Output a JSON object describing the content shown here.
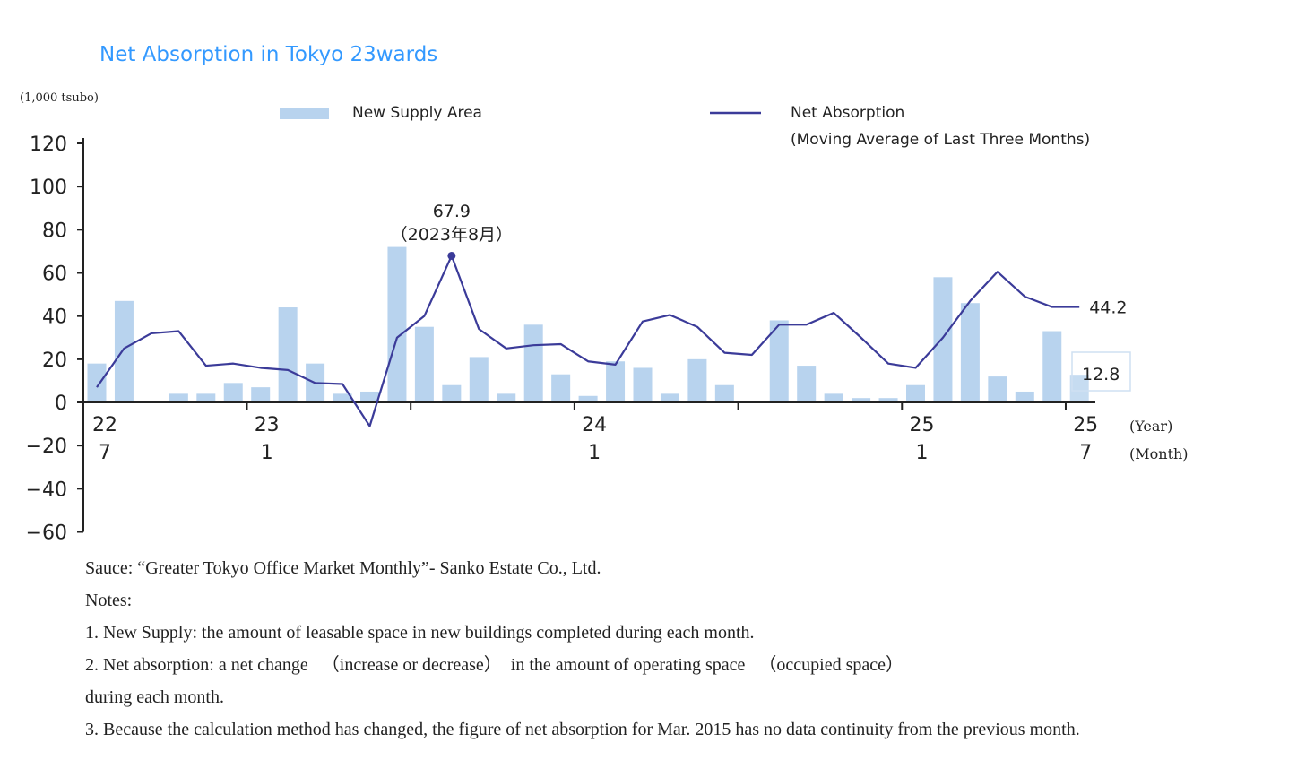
{
  "chart_data": {
    "type": "bar+line",
    "title": "Net Absorption in Tokyo 23wards",
    "ylabel": "(1,000 tsubo)",
    "ylim": [
      -60,
      120
    ],
    "yticks": [
      120,
      100,
      80,
      60,
      40,
      20,
      0,
      -20,
      -40,
      -60
    ],
    "ytick_labels": [
      "120",
      "100",
      "80",
      "60",
      "40",
      "20",
      "0",
      "−20",
      "−40",
      "−60"
    ],
    "xtick_labels": [
      {
        "year": "22",
        "month": "7",
        "index": 0
      },
      {
        "year": "23",
        "month": "1",
        "index": 6
      },
      {
        "year": "24",
        "month": "1",
        "index": 18
      },
      {
        "year": "25",
        "month": "1",
        "index": 30
      },
      {
        "year": "25",
        "month": "7",
        "index": 36
      }
    ],
    "x_unit_year": "(Year)",
    "x_unit_month": "(Month)",
    "months": [
      "2022-07",
      "2022-08",
      "2022-09",
      "2022-10",
      "2022-11",
      "2022-12",
      "2023-01",
      "2023-02",
      "2023-03",
      "2023-04",
      "2023-05",
      "2023-06",
      "2023-07",
      "2023-08",
      "2023-09",
      "2023-10",
      "2023-11",
      "2023-12",
      "2024-01",
      "2024-02",
      "2024-03",
      "2024-04",
      "2024-05",
      "2024-06",
      "2024-07",
      "2024-08",
      "2024-09",
      "2024-10",
      "2024-11",
      "2024-12",
      "2025-01",
      "2025-02",
      "2025-03",
      "2025-04",
      "2025-05",
      "2025-06",
      "2025-07"
    ],
    "series": [
      {
        "name": "New Supply Area",
        "type": "bar",
        "color": "#b8d3ee",
        "values": [
          18,
          47,
          0,
          4,
          4,
          9,
          7,
          44,
          18,
          4,
          5,
          72,
          35,
          8,
          21,
          4,
          36,
          13,
          3,
          19,
          16,
          4,
          20,
          8,
          0.5,
          38,
          17,
          4,
          2,
          2,
          8,
          58,
          46,
          12,
          5,
          33,
          12.8
        ]
      },
      {
        "name": "Net Absorption",
        "name_line2": "(Moving Average of Last Three Months)",
        "type": "line",
        "color": "#3b3b99",
        "values": [
          7,
          25,
          32,
          33,
          17,
          18,
          16,
          15,
          9,
          8.5,
          -11,
          30,
          40,
          67.9,
          34,
          25,
          26.5,
          27,
          19,
          17.5,
          37.5,
          40.5,
          35,
          23,
          22,
          36,
          36,
          41.5,
          30,
          18,
          16,
          30,
          47,
          60.5,
          49,
          44.2,
          44.2
        ]
      }
    ],
    "annotations": {
      "peak_value": "67.9",
      "peak_date": "（2023年8月）",
      "peak_index": 13,
      "last_line_value": "44.2",
      "last_bar_value": "12.8"
    },
    "legend": "top",
    "grid": false
  },
  "notes": {
    "source": "Sauce:  “Greater Tokyo Office Market Monthly”- Sanko Estate Co., Ltd.",
    "heading": "Notes:",
    "note1": "1. New Supply: the amount of leasable space in new buildings completed during each month.",
    "note2": "2. Net absorption: a net change 　（increase or decrease）　in the amount of operating space 　（occupied space）",
    "note2_cont": "during each month.",
    "note3": "3. Because the calculation method has changed, the figure of net absorption for Mar. 2015 has no data continuity from the previous month."
  }
}
